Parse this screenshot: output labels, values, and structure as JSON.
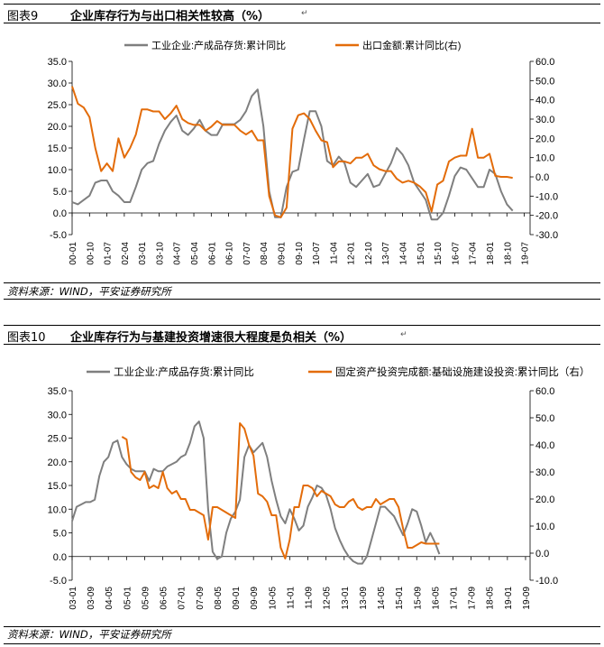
{
  "page": {
    "return_mark": "↵"
  },
  "figure1": {
    "number": "图表9",
    "title": "企业库存行为与出口相关性较高（%）",
    "source": "资料来源：WIND，平安证券研究所"
  },
  "figure2": {
    "number": "图表10",
    "title": "企业库存行为与基建投资增速很大程度是负相关（%）",
    "source": "资料来源：WIND，平安证券研究所"
  },
  "chart_data": [
    {
      "type": "line",
      "title": "企业库存行为与出口相关性较高（%）",
      "left_axis": {
        "ylim": [
          -5,
          35
        ],
        "ticks": [
          "35.0",
          "30.0",
          "25.0",
          "20.0",
          "15.0",
          "10.0",
          "5.0",
          "0.0",
          "-5.0"
        ]
      },
      "right_axis": {
        "ylim": [
          -30,
          60
        ],
        "ticks": [
          "60.0",
          "50.0",
          "40.0",
          "30.0",
          "20.0",
          "10.0",
          "0.0",
          "-10.0",
          "-20.0",
          "-30.0"
        ]
      },
      "x_start_month": "2000-01",
      "x_ticks": [
        "00-01",
        "00-10",
        "01-07",
        "02-04",
        "03-01",
        "03-10",
        "04-07",
        "05-04",
        "06-01",
        "06-10",
        "07-07",
        "08-04",
        "09-01",
        "09-10",
        "10-07",
        "11-04",
        "12-01",
        "12-10",
        "13-07",
        "14-04",
        "15-01",
        "15-10",
        "16-07",
        "17-04",
        "18-01",
        "18-10",
        "19-07"
      ],
      "series": [
        {
          "name": "工业企业:产成品存货:累计同比",
          "color": "#7f7f7f",
          "axis": "left",
          "interval_months": 3,
          "values": [
            2.5,
            2.0,
            3.0,
            4.0,
            7.0,
            7.5,
            7.5,
            5.0,
            4.0,
            2.5,
            2.5,
            6.0,
            10.0,
            11.5,
            12.0,
            16.0,
            19.0,
            21.0,
            22.5,
            19.0,
            18.0,
            19.5,
            21.5,
            19.0,
            18.0,
            18.0,
            20.5,
            20.5,
            20.5,
            21.5,
            23.5,
            27.0,
            28.5,
            20.0,
            5.0,
            -1.0,
            -1.0,
            6.0,
            9.5,
            10.0,
            17.0,
            23.5,
            23.5,
            20.0,
            12.0,
            11.0,
            13.0,
            11.5,
            7.0,
            6.0,
            7.5,
            9.0,
            6.0,
            6.5,
            9.0,
            11.5,
            15.0,
            13.5,
            11.0,
            7.0,
            5.0,
            3.0,
            -1.5,
            -1.5,
            0.0,
            4.0,
            8.5,
            10.5,
            10.0,
            8.0,
            6.0,
            6.0,
            10.0,
            9.0,
            5.0,
            2.0,
            0.5
          ]
        },
        {
          "name": "出口金额:累计同比(右)",
          "color": "#e36c0a",
          "axis": "right",
          "interval_months": 3,
          "values": [
            47.0,
            38.0,
            36.0,
            31.0,
            15.0,
            3.0,
            7.0,
            3.0,
            20.0,
            10.0,
            15.0,
            22.0,
            35.0,
            35.0,
            34.0,
            34.0,
            30.0,
            33.0,
            37.0,
            30.0,
            28.0,
            27.0,
            27.0,
            24.0,
            26.0,
            29.0,
            27.0,
            27.0,
            27.0,
            24.0,
            22.0,
            24.0,
            19.0,
            19.0,
            -10.0,
            -20.0,
            -21.0,
            -16.0,
            25.0,
            32.0,
            33.0,
            30.0,
            24.0,
            19.0,
            18.0,
            5.0,
            8.0,
            8.0,
            7.0,
            10.0,
            10.0,
            12.0,
            6.0,
            4.0,
            3.0,
            3.0,
            -1.0,
            -3.0,
            -2.0,
            -3.0,
            -5.0,
            -8.0,
            -18.0,
            -4.0,
            -2.0,
            8.0,
            10.0,
            11.0,
            11.0,
            25.0,
            10.0,
            10.0,
            12.0,
            0.5,
            0.0,
            0.0,
            -0.5
          ]
        }
      ]
    },
    {
      "type": "line",
      "title": "企业库存行为与基建投资增速很大程度是负相关（%）",
      "left_axis": {
        "ylim": [
          -5,
          35
        ],
        "ticks": [
          "35.0",
          "30.0",
          "25.0",
          "20.0",
          "15.0",
          "10.0",
          "5.0",
          "0.0",
          "-5.0"
        ]
      },
      "right_axis": {
        "ylim": [
          -10,
          60
        ],
        "ticks": [
          "60.0",
          "50.0",
          "40.0",
          "30.0",
          "20.0",
          "10.0",
          "0.0",
          "-10.0"
        ]
      },
      "x_start_month": "2003-01",
      "x_ticks": [
        "03-01",
        "03-09",
        "04-05",
        "05-01",
        "05-09",
        "06-05",
        "07-01",
        "07-09",
        "08-05",
        "09-01",
        "09-09",
        "10-05",
        "11-01",
        "11-09",
        "12-05",
        "13-01",
        "13-09",
        "14-05",
        "15-01",
        "15-09",
        "16-05",
        "17-01",
        "17-09",
        "18-05",
        "19-01",
        "19-09"
      ],
      "series": [
        {
          "name": "工业企业:产成品存货:累计同比",
          "color": "#7f7f7f",
          "axis": "left",
          "interval_months": 2,
          "values": [
            7.5,
            10.5,
            11.0,
            11.5,
            11.5,
            12.0,
            17.0,
            20.0,
            21.0,
            24.0,
            24.5,
            21.0,
            19.5,
            18.5,
            18.0,
            18.0,
            18.0,
            16.0,
            18.5,
            18.0,
            18.0,
            19.0,
            19.5,
            20.0,
            21.0,
            21.5,
            24.0,
            27.5,
            28.5,
            25.0,
            10.0,
            1.0,
            -0.5,
            0.0,
            5.0,
            8.0,
            9.5,
            12.0,
            21.0,
            23.5,
            22.0,
            23.0,
            24.0,
            21.0,
            16.0,
            12.0,
            8.5,
            7.0,
            10.0,
            8.0,
            5.5,
            6.5,
            10.5,
            12.5,
            15.0,
            14.5,
            13.0,
            10.0,
            6.0,
            3.5,
            1.5,
            0.0,
            -1.0,
            -1.5,
            -1.5,
            0.0,
            3.5,
            7.0,
            10.5,
            10.5,
            9.5,
            8.5,
            6.5,
            4.5,
            7.0,
            10.0,
            9.5,
            6.5,
            3.0,
            5.0,
            3.0,
            0.5
          ]
        },
        {
          "name": "固定资产投资完成额:基础设施建设投资:累计同比（右）",
          "color": "#e36c0a",
          "axis": "right",
          "interval_months": 2,
          "values": [
            null,
            null,
            null,
            null,
            null,
            null,
            null,
            null,
            null,
            null,
            null,
            43.0,
            42.0,
            30.0,
            28.0,
            27.0,
            30.0,
            24.0,
            25.0,
            24.0,
            30.0,
            24.0,
            22.0,
            23.0,
            20.0,
            20.0,
            16.0,
            16.0,
            15.0,
            14.0,
            5.0,
            17.0,
            17.0,
            16.0,
            15.0,
            14.0,
            13.0,
            48.0,
            46.0,
            40.0,
            36.0,
            22.0,
            21.0,
            19.0,
            14.0,
            14.0,
            2.0,
            -2.0,
            5.0,
            17.0,
            17.0,
            25.0,
            25.0,
            24.0,
            21.0,
            23.0,
            22.0,
            21.0,
            18.0,
            17.0,
            17.0,
            19.0,
            20.0,
            17.0,
            16.0,
            17.0,
            17.0,
            20.0,
            18.0,
            19.0,
            20.0,
            20.0,
            17.0,
            9.0,
            2.0,
            2.0,
            3.0,
            4.0,
            3.5,
            3.5,
            3.5,
            3.5
          ]
        }
      ]
    }
  ]
}
